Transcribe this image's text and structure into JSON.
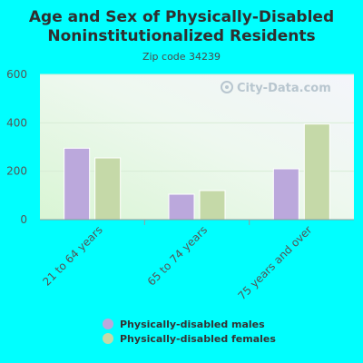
{
  "chart_data": {
    "type": "bar",
    "title_line1": "Age and Sex of Physically-Disabled",
    "title_line2": "Noninstitutionalized Residents",
    "subtitle": "Zip code 34239",
    "categories": [
      "21 to 64 years",
      "65 to 74 years",
      "75 years and over"
    ],
    "series": [
      {
        "name": "Physically-disabled males",
        "values": [
          295,
          105,
          210
        ],
        "color": "#bba8dc"
      },
      {
        "name": "Physically-disabled females",
        "values": [
          255,
          120,
          395
        ],
        "color": "#c5d9a8"
      }
    ],
    "ylim": [
      0,
      600
    ],
    "yticks": [
      "0",
      "200",
      "400",
      "600"
    ],
    "legend_position": "bottom-center",
    "grid": true
  },
  "watermark": {
    "text": "City-Data.com"
  }
}
